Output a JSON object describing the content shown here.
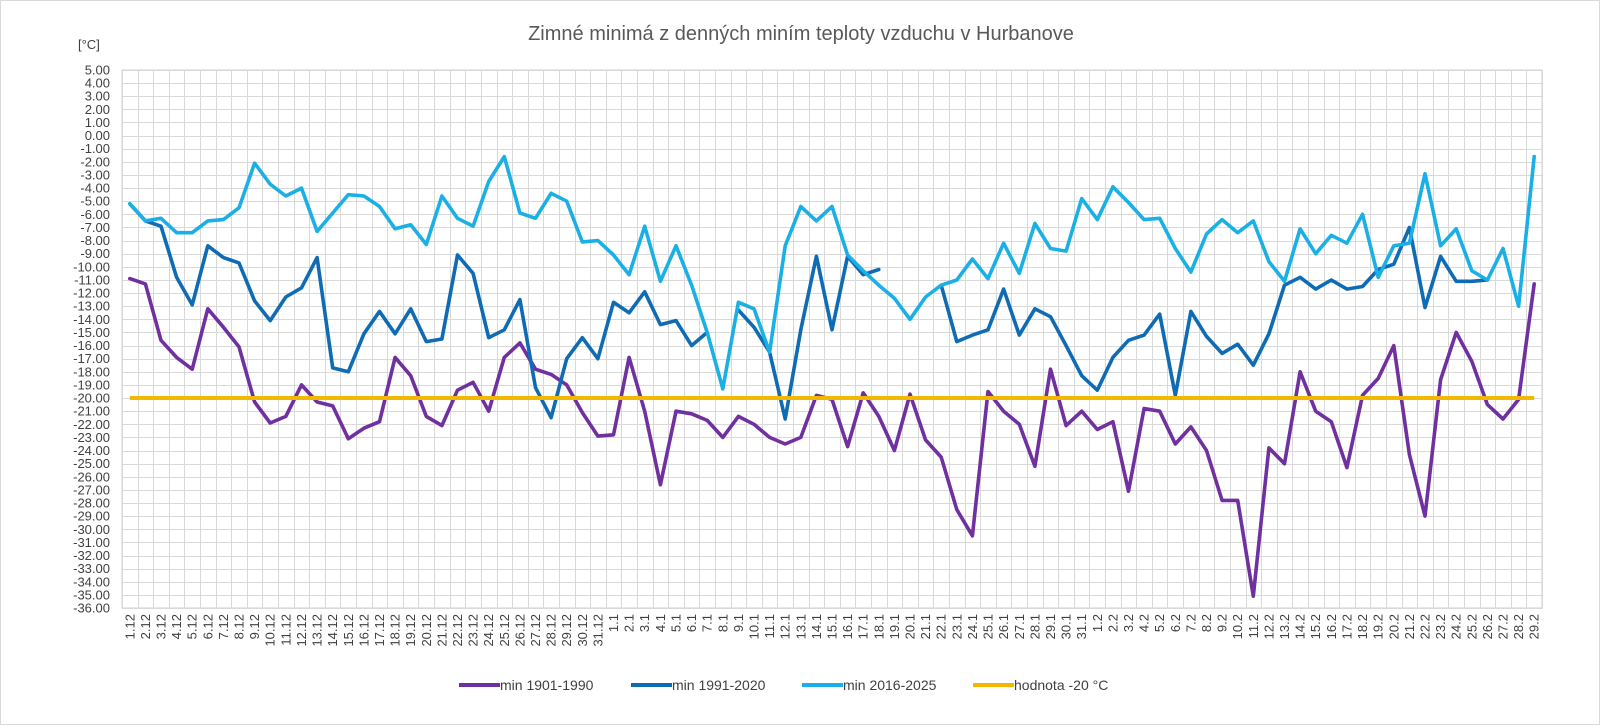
{
  "chart_data": {
    "type": "line",
    "title": "Zimné minimá z denných miním teploty vzduchu v Hurbanove",
    "ylabel": "[°C]",
    "xlabel": "",
    "ylim": [
      -36,
      5
    ],
    "ystep": 1,
    "grid": true,
    "legend_position": "bottom",
    "categories": [
      "1.12",
      "2.12",
      "3.12",
      "4.12",
      "5.12",
      "6.12",
      "7.12",
      "8.12",
      "9.12",
      "10.12",
      "11.12",
      "12.12",
      "13.12",
      "14.12",
      "15.12",
      "16.12",
      "17.12",
      "18.12",
      "19.12",
      "20.12",
      "21.12",
      "22.12",
      "23.12",
      "24.12",
      "25.12",
      "26.12",
      "27.12",
      "28.12",
      "29.12",
      "30.12",
      "31.12",
      "1.1",
      "2.1",
      "3.1",
      "4.1",
      "5.1",
      "6.1",
      "7.1",
      "8.1",
      "9.1",
      "10.1",
      "11.1",
      "12.1",
      "13.1",
      "14.1",
      "15.1",
      "16.1",
      "17.1",
      "18.1",
      "19.1",
      "20.1",
      "21.1",
      "22.1",
      "23.1",
      "24.1",
      "25.1",
      "26.1",
      "27.1",
      "28.1",
      "29.1",
      "30.1",
      "31.1",
      "1.2",
      "2.2",
      "3.2",
      "4.2",
      "5.2",
      "6.2",
      "7.2",
      "8.2",
      "9.2",
      "10.2",
      "11.2",
      "12.2",
      "13.2",
      "14.2",
      "15.2",
      "16.2",
      "17.2",
      "18.2",
      "19.2",
      "20.2",
      "21.2",
      "22.2",
      "23.2",
      "24.2",
      "25.2",
      "26.2",
      "27.2",
      "28.2",
      "29.2"
    ],
    "series": [
      {
        "name": "min 1901-1990",
        "color": "#7030a0",
        "values": [
          -10.9,
          -11.3,
          -15.6,
          -16.9,
          -17.8,
          -13.2,
          -14.6,
          -16.1,
          -20.3,
          -21.9,
          -21.4,
          -19.0,
          -20.3,
          -20.6,
          -23.1,
          -22.3,
          -21.8,
          -16.9,
          -18.3,
          -21.4,
          -22.1,
          -19.4,
          -18.8,
          -21.0,
          -16.9,
          -15.8,
          -17.8,
          -18.2,
          -19.0,
          -21.1,
          -22.9,
          -22.8,
          -16.9,
          -21.0,
          -26.6,
          -21.0,
          -21.2,
          -21.7,
          -23.0,
          -21.4,
          -22.0,
          -23.0,
          -23.5,
          -23.0,
          -19.8,
          -20.1,
          -23.7,
          -19.6,
          -21.4,
          -24.0,
          -19.7,
          -23.2,
          -24.5,
          -28.5,
          -30.5,
          -19.5,
          -21.0,
          -22.0,
          -25.2,
          -17.8,
          -22.1,
          -21.0,
          -22.4,
          -21.8,
          -27.1,
          -20.8,
          -21.0,
          -23.5,
          -22.2,
          -24.0,
          -27.8,
          -27.8,
          -35.1,
          -23.8,
          -25.0,
          -18.0,
          -21.0,
          -21.8,
          -25.3,
          -19.8,
          -18.5,
          -16.0,
          -24.3,
          -29.0,
          -18.6,
          -15.0,
          -17.2,
          -20.5,
          -21.6,
          -20.1,
          -11.3
        ]
      },
      {
        "name": "min 1991-2020",
        "color": "#0f6cb4",
        "values": [
          -5.2,
          -6.5,
          -6.9,
          -10.8,
          -12.9,
          -8.4,
          -9.3,
          -9.7,
          -12.6,
          -14.1,
          -12.3,
          -11.6,
          -9.3,
          -17.7,
          -18.0,
          -15.1,
          -13.4,
          -15.1,
          -13.2,
          -15.7,
          -15.5,
          -9.1,
          -10.5,
          -15.4,
          -14.8,
          -12.5,
          -19.2,
          -21.5,
          -17.0,
          -15.4,
          -17.0,
          -12.7,
          -13.5,
          -11.9,
          -14.4,
          -14.1,
          -16.0,
          -15.0,
          null,
          -13.3,
          -14.6,
          -16.5,
          -21.6,
          -14.8,
          -9.2,
          -14.8,
          -9.2,
          -10.6,
          -10.2,
          null,
          null,
          null,
          -11.4,
          -15.7,
          -15.2,
          -14.8,
          -11.7,
          -15.2,
          -13.2,
          -13.8,
          -16.0,
          -18.3,
          -19.4,
          -16.9,
          -15.6,
          -15.2,
          -13.6,
          -19.8,
          -13.4,
          -15.3,
          -16.6,
          -15.9,
          -17.5,
          -15.1,
          -11.4,
          -10.8,
          -11.7,
          -11.0,
          -11.7,
          -11.5,
          -10.2,
          -9.8,
          -7.0,
          -13.1,
          -9.2,
          -11.1,
          -11.1,
          -11.0,
          null,
          null,
          -7.0
        ]
      },
      {
        "name": "min 2016-2025",
        "color": "#1ab0e6",
        "values": [
          -5.2,
          -6.5,
          -6.3,
          -7.4,
          -7.4,
          -6.5,
          -6.4,
          -5.5,
          -2.1,
          -3.7,
          -4.6,
          -4.0,
          -7.3,
          -5.9,
          -4.5,
          -4.6,
          -5.4,
          -7.1,
          -6.8,
          -8.3,
          -4.6,
          -6.3,
          -6.9,
          -3.5,
          -1.6,
          -5.9,
          -6.3,
          -4.4,
          -5.0,
          -8.1,
          -8.0,
          -9.1,
          -10.6,
          -6.9,
          -11.1,
          -8.4,
          -11.4,
          -15.0,
          -19.3,
          -12.7,
          -13.2,
          -16.5,
          -8.4,
          -5.4,
          -6.5,
          -5.4,
          -9.1,
          -10.3,
          -11.4,
          -12.4,
          -14.0,
          -12.3,
          -11.4,
          -11.0,
          -9.4,
          -10.9,
          -8.2,
          -10.5,
          -6.7,
          -8.6,
          -8.8,
          -4.8,
          -6.4,
          -3.9,
          -5.1,
          -6.4,
          -6.3,
          -8.6,
          -10.4,
          -7.5,
          -6.4,
          -7.4,
          -6.5,
          -9.6,
          -11.1,
          -7.1,
          -9.0,
          -7.6,
          -8.2,
          -6.0,
          -10.8,
          -8.4,
          -8.2,
          -2.9,
          -8.4,
          -7.1,
          -10.3,
          -11.0,
          -8.6,
          -13.0,
          -1.6
        ]
      },
      {
        "name": "hodnota -20 °C",
        "color": "#f2b800",
        "constant": -20
      }
    ]
  }
}
